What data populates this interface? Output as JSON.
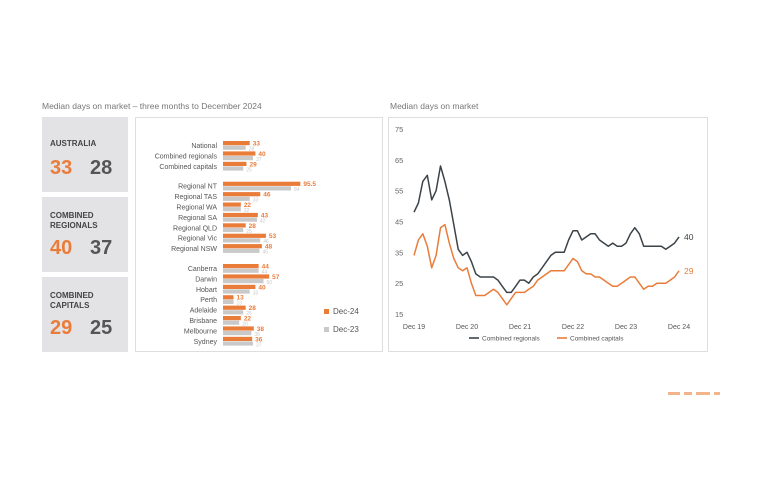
{
  "left_title": "Median days on market – three months to December 2024",
  "right_title": "Median days on market",
  "tiles": [
    {
      "label": "AUSTRALIA",
      "dec24": "33",
      "dec23": "28"
    },
    {
      "label": "COMBINED\nREGIONALS",
      "dec24": "40",
      "dec23": "37"
    },
    {
      "label": "COMBINED\nCAPITALS",
      "dec24": "29",
      "dec23": "25"
    }
  ],
  "colors": {
    "orange": "#ea7c3a",
    "light_grey": "#c9c9c9",
    "dark_line": "#3c4348"
  },
  "chart_data": [
    {
      "type": "bar",
      "orientation": "horizontal",
      "title": "Median days on market – three months to December 2024",
      "categories": [
        "National",
        "Combined regionals",
        "Combined capitals",
        "Regional NT",
        "Regional TAS",
        "Regional WA",
        "Regional SA",
        "Regional QLD",
        "Regional Vic",
        "Regional NSW",
        "Canberra",
        "Darwin",
        "Hobart",
        "Perth",
        "Adelaide",
        "Brisbane",
        "Melbourne",
        "Sydney"
      ],
      "groups": [
        [
          0,
          1,
          2
        ],
        [
          3,
          4,
          5,
          6,
          7,
          8,
          9
        ],
        [
          10,
          11,
          12,
          13,
          14,
          15,
          16,
          17
        ]
      ],
      "series": [
        {
          "name": "Dec-24",
          "color": "#ea7c3a",
          "values": [
            33,
            40,
            29,
            95.5,
            46,
            22,
            43,
            28,
            53,
            48,
            44,
            57,
            40,
            13,
            28,
            22,
            38,
            36
          ]
        },
        {
          "name": "Dec-23",
          "color": "#c9c9c9",
          "values": [
            28,
            37,
            25,
            84,
            33,
            22,
            42,
            25,
            46,
            45,
            44,
            50,
            33,
            13,
            25,
            20,
            35,
            37
          ]
        }
      ],
      "legend": {
        "position": "right",
        "labels": [
          "Dec-24",
          "Dec-23"
        ]
      }
    },
    {
      "type": "line",
      "title": "Median days on market",
      "x_ticks": [
        "Dec 19",
        "Dec 20",
        "Dec 21",
        "Dec 22",
        "Dec 23",
        "Dec 24"
      ],
      "y_ticks": [
        15,
        25,
        35,
        45,
        55,
        65,
        75
      ],
      "ylim": [
        15,
        75
      ],
      "x_points_per_year": 12,
      "series": [
        {
          "name": "Combined regionals",
          "color": "#3c4348",
          "end_label": "40",
          "values": [
            48,
            51,
            58,
            60,
            52,
            55,
            63,
            58,
            52,
            44,
            36,
            34,
            35,
            32,
            28,
            27,
            27,
            27,
            27,
            26,
            24,
            22,
            22,
            24,
            26,
            26,
            25,
            27,
            28,
            30,
            32,
            34,
            35,
            35,
            35,
            39,
            42,
            42,
            39,
            40,
            41,
            41,
            39,
            38,
            37,
            38,
            37,
            37,
            38,
            41,
            43,
            41,
            37,
            37,
            37,
            37,
            37,
            36,
            37,
            38,
            40
          ]
        },
        {
          "name": "Combined capitals",
          "color": "#ea7c3a",
          "end_label": "29",
          "values": [
            34,
            39,
            41,
            37,
            30,
            34,
            43,
            44,
            38,
            33,
            30,
            29,
            30,
            25,
            21,
            21,
            21,
            22,
            23,
            22,
            20,
            18,
            20,
            22,
            22,
            22,
            23,
            24,
            26,
            27,
            28,
            29,
            29,
            29,
            29,
            31,
            33,
            32,
            29,
            28,
            28,
            27,
            27,
            26,
            25,
            24,
            24,
            25,
            26,
            27,
            27,
            25,
            23,
            24,
            24,
            25,
            25,
            25,
            26,
            27,
            29
          ]
        }
      ],
      "legend": {
        "position": "bottom",
        "labels": [
          "Combined regionals",
          "Combined capitals"
        ]
      }
    }
  ]
}
